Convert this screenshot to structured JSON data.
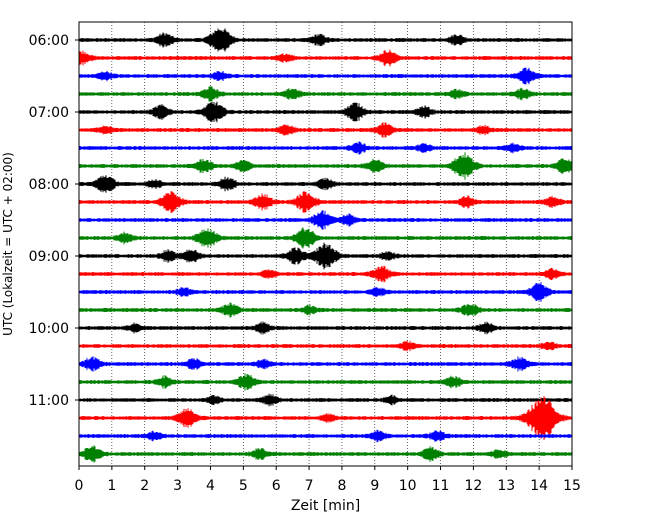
{
  "chart_data": {
    "type": "line",
    "title": "",
    "xlabel": "Zeit  [min]",
    "ylabel": "UTC (Lokalzeit = UTC + 02:00)",
    "xlim": [
      0,
      15
    ],
    "x_ticks": [
      "0",
      "1",
      "2",
      "3",
      "4",
      "5",
      "6",
      "7",
      "8",
      "9",
      "10",
      "11",
      "12",
      "13",
      "14",
      "15"
    ],
    "y_tick_labels": [
      "06:00",
      "07:00",
      "08:00",
      "09:00",
      "10:00",
      "11:00"
    ],
    "grid": "vertical dotted",
    "trace_interval_min": 15,
    "trace_colors": [
      "#000000",
      "#ff0000",
      "#0000ff",
      "#008000"
    ],
    "traces": [
      {
        "start": "06:00",
        "color": "#000000",
        "events": [
          [
            4.3,
            1.0
          ],
          [
            2.6,
            0.5
          ],
          [
            7.3,
            0.4
          ],
          [
            11.5,
            0.4
          ]
        ]
      },
      {
        "start": "06:15",
        "color": "#ff0000",
        "events": [
          [
            9.4,
            0.6
          ],
          [
            0.1,
            0.5
          ],
          [
            6.3,
            0.3
          ]
        ]
      },
      {
        "start": "06:30",
        "color": "#0000ff",
        "events": [
          [
            13.6,
            0.6
          ],
          [
            4.3,
            0.3
          ],
          [
            0.8,
            0.3
          ]
        ]
      },
      {
        "start": "06:45",
        "color": "#008000",
        "events": [
          [
            4.0,
            0.5
          ],
          [
            6.5,
            0.4
          ],
          [
            13.5,
            0.4
          ],
          [
            11.5,
            0.3
          ]
        ]
      },
      {
        "start": "07:00",
        "color": "#000000",
        "events": [
          [
            4.1,
            0.8
          ],
          [
            8.4,
            0.7
          ],
          [
            2.5,
            0.5
          ],
          [
            10.5,
            0.4
          ]
        ]
      },
      {
        "start": "07:15",
        "color": "#ff0000",
        "events": [
          [
            6.3,
            0.4
          ],
          [
            9.3,
            0.5
          ],
          [
            0.8,
            0.3
          ],
          [
            12.3,
            0.3
          ]
        ]
      },
      {
        "start": "07:30",
        "color": "#0000ff",
        "events": [
          [
            8.5,
            0.4
          ],
          [
            10.5,
            0.3
          ],
          [
            13.2,
            0.3
          ]
        ]
      },
      {
        "start": "07:45",
        "color": "#008000",
        "events": [
          [
            11.7,
            1.0
          ],
          [
            3.8,
            0.5
          ],
          [
            14.8,
            0.6
          ],
          [
            9.0,
            0.5
          ],
          [
            5.0,
            0.4
          ]
        ]
      },
      {
        "start": "08:00",
        "color": "#000000",
        "events": [
          [
            0.8,
            0.7
          ],
          [
            4.5,
            0.5
          ],
          [
            7.5,
            0.4
          ],
          [
            2.3,
            0.3
          ]
        ]
      },
      {
        "start": "08:15",
        "color": "#ff0000",
        "events": [
          [
            2.8,
            0.8
          ],
          [
            6.9,
            0.8
          ],
          [
            5.6,
            0.6
          ],
          [
            11.8,
            0.4
          ],
          [
            14.4,
            0.4
          ]
        ]
      },
      {
        "start": "08:30",
        "color": "#0000ff",
        "events": [
          [
            7.4,
            0.7
          ],
          [
            8.2,
            0.4
          ]
        ]
      },
      {
        "start": "08:45",
        "color": "#008000",
        "events": [
          [
            3.9,
            0.8
          ],
          [
            6.9,
            0.8
          ],
          [
            1.4,
            0.4
          ]
        ]
      },
      {
        "start": "09:00",
        "color": "#000000",
        "events": [
          [
            7.5,
            1.0
          ],
          [
            6.6,
            0.6
          ],
          [
            3.4,
            0.5
          ],
          [
            2.7,
            0.4
          ],
          [
            9.4,
            0.3
          ]
        ]
      },
      {
        "start": "09:15",
        "color": "#ff0000",
        "events": [
          [
            9.2,
            0.6
          ],
          [
            5.8,
            0.3
          ],
          [
            14.4,
            0.4
          ]
        ]
      },
      {
        "start": "09:30",
        "color": "#0000ff",
        "events": [
          [
            14.0,
            0.7
          ],
          [
            3.2,
            0.3
          ],
          [
            9.1,
            0.3
          ]
        ]
      },
      {
        "start": "09:45",
        "color": "#008000",
        "events": [
          [
            11.9,
            0.5
          ],
          [
            4.6,
            0.5
          ],
          [
            7.0,
            0.3
          ]
        ]
      },
      {
        "start": "10:00",
        "color": "#000000",
        "events": [
          [
            5.6,
            0.4
          ],
          [
            12.4,
            0.4
          ],
          [
            1.7,
            0.3
          ]
        ]
      },
      {
        "start": "10:15",
        "color": "#ff0000",
        "events": [
          [
            10.0,
            0.3
          ],
          [
            14.3,
            0.3
          ]
        ]
      },
      {
        "start": "10:30",
        "color": "#0000ff",
        "events": [
          [
            0.4,
            0.5
          ],
          [
            3.5,
            0.4
          ],
          [
            13.4,
            0.5
          ],
          [
            5.6,
            0.3
          ]
        ]
      },
      {
        "start": "10:45",
        "color": "#008000",
        "events": [
          [
            5.1,
            0.6
          ],
          [
            2.6,
            0.4
          ],
          [
            11.4,
            0.4
          ]
        ]
      },
      {
        "start": "11:00",
        "color": "#000000",
        "events": [
          [
            5.8,
            0.4
          ],
          [
            4.1,
            0.3
          ],
          [
            9.5,
            0.3
          ]
        ]
      },
      {
        "start": "11:15",
        "color": "#ff0000",
        "events": [
          [
            14.1,
            1.7
          ],
          [
            3.3,
            0.7
          ],
          [
            7.6,
            0.3
          ]
        ]
      },
      {
        "start": "11:30",
        "color": "#0000ff",
        "events": [
          [
            9.1,
            0.4
          ],
          [
            10.9,
            0.4
          ],
          [
            2.3,
            0.3
          ]
        ]
      },
      {
        "start": "11:45",
        "color": "#008000",
        "events": [
          [
            0.4,
            0.6
          ],
          [
            10.7,
            0.5
          ],
          [
            5.5,
            0.4
          ],
          [
            12.8,
            0.3
          ]
        ]
      }
    ]
  }
}
